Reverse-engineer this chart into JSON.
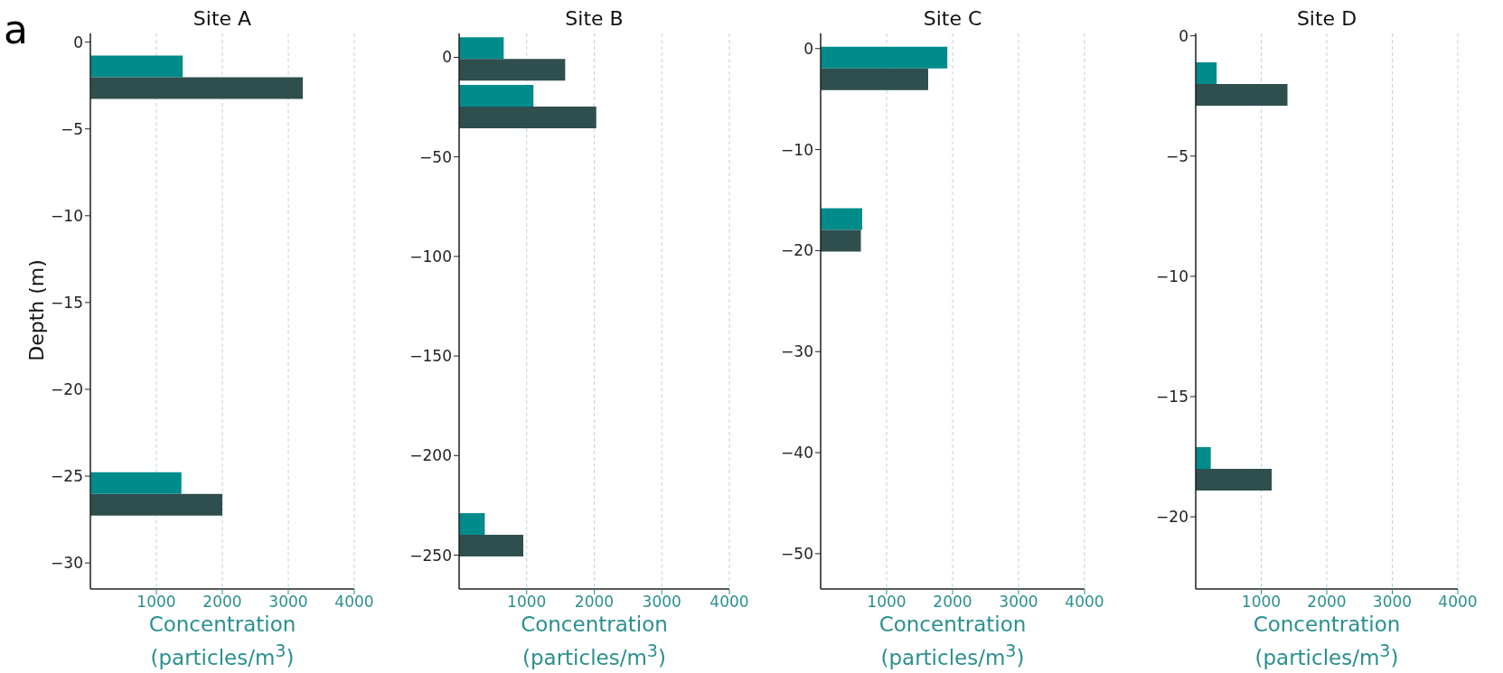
{
  "chart_data": [
    {
      "type": "bar",
      "orientation": "horizontal",
      "title": "Site A",
      "ylabel": "Depth (m)",
      "xlabel": "Concentration\n(particles/m$^{3}$)",
      "annotations": [
        "a"
      ],
      "x": [
        -2,
        -26
      ],
      "series": [
        {
          "color": "#008b8b",
          "values": [
            1400,
            1380
          ]
        },
        {
          "color": "#2f4f4f",
          "values": [
            3220,
            2000
          ]
        }
      ],
      "xlim": [
        0,
        4000
      ],
      "xticks": [
        1000,
        2000,
        3000,
        4000
      ],
      "ylim": [
        -31.5,
        0.5
      ],
      "yticks": [
        0,
        -5,
        -10,
        -15,
        -20,
        -25,
        -30
      ],
      "grid": "x"
    },
    {
      "type": "bar",
      "orientation": "horizontal",
      "title": "Site B",
      "xlabel": "Concentration\n(particles/m$^{3}$)",
      "x": [
        -1,
        -25,
        -240
      ],
      "series": [
        {
          "color": "#008b8b",
          "values": [
            660,
            1100,
            380
          ]
        },
        {
          "color": "#2f4f4f",
          "values": [
            1570,
            2030,
            950
          ]
        }
      ],
      "xlim": [
        0,
        4000
      ],
      "xticks": [
        1000,
        2000,
        3000,
        4000
      ],
      "ylim": [
        -267,
        12
      ],
      "yticks": [
        0,
        -50,
        -100,
        -150,
        -200,
        -250
      ],
      "grid": "x"
    },
    {
      "type": "bar",
      "orientation": "horizontal",
      "title": "Site C",
      "xlabel": "Concentration\n(particles/m$^{3}$)",
      "x": [
        -2,
        -18
      ],
      "series": [
        {
          "color": "#008b8b",
          "values": [
            1920,
            630
          ]
        },
        {
          "color": "#2f4f4f",
          "values": [
            1630,
            610
          ]
        }
      ],
      "xlim": [
        0,
        4000
      ],
      "xticks": [
        1000,
        2000,
        3000,
        4000
      ],
      "ylim": [
        -53.5,
        1.5
      ],
      "yticks": [
        0,
        -10,
        -20,
        -30,
        -40,
        -50
      ],
      "grid": "x"
    },
    {
      "type": "bar",
      "orientation": "horizontal",
      "title": "Site D",
      "xlabel": "Concentration\n(particles/m$^{3}$)",
      "x": [
        -2,
        -18
      ],
      "series": [
        {
          "color": "#008b8b",
          "values": [
            320,
            230
          ]
        },
        {
          "color": "#2f4f4f",
          "values": [
            1400,
            1160
          ]
        }
      ],
      "xlim": [
        0,
        4000
      ],
      "xticks": [
        1000,
        2000,
        3000,
        4000
      ],
      "ylim": [
        -23,
        0.1
      ],
      "yticks": [
        0,
        -5,
        -10,
        -15,
        -20
      ],
      "grid": "x"
    }
  ]
}
